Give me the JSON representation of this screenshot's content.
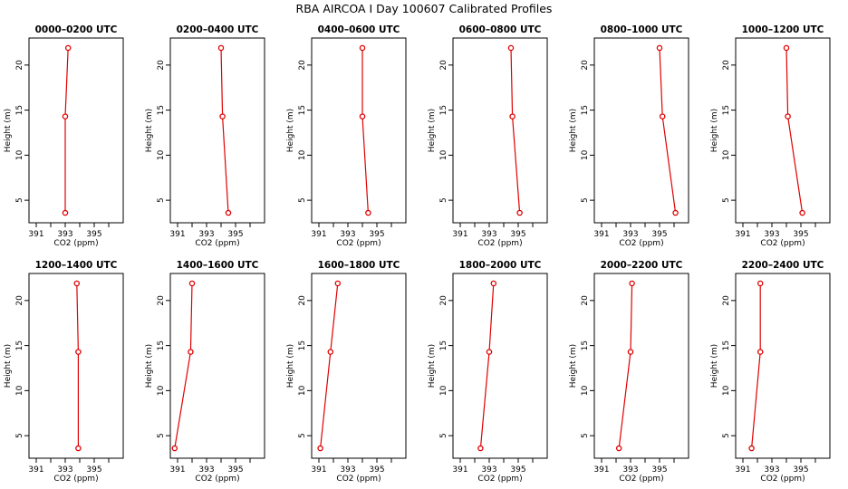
{
  "figure": {
    "title": "RBA AIRCOA I  Day 100607  Calibrated Profiles"
  },
  "chart_data": {
    "type": "line",
    "xlabel": "CO2 (ppm)",
    "ylabel": "Height (m)",
    "xlim": [
      390.5,
      397.0
    ],
    "ylim": [
      2.5,
      23.0
    ],
    "x_ticks": [
      391,
      393,
      395
    ],
    "x_minor_ticks": [
      392,
      394,
      396
    ],
    "y_ticks": [
      5,
      10,
      15,
      20
    ],
    "heights": [
      3.6,
      14.3,
      21.9
    ],
    "line_color": "#e00000",
    "marker": "open-circle",
    "panels": [
      {
        "title": "0000–0200 UTC",
        "co2": [
          393.0,
          393.0,
          393.2
        ]
      },
      {
        "title": "0200–0400 UTC",
        "co2": [
          394.5,
          394.1,
          394.0
        ]
      },
      {
        "title": "0400–0600 UTC",
        "co2": [
          394.4,
          394.0,
          394.0
        ]
      },
      {
        "title": "0600–0800 UTC",
        "co2": [
          395.1,
          394.6,
          394.5
        ]
      },
      {
        "title": "0800–1000 UTC",
        "co2": [
          396.1,
          395.2,
          395.0
        ]
      },
      {
        "title": "1000–1200 UTC",
        "co2": [
          395.1,
          394.1,
          394.0
        ]
      },
      {
        "title": "1200–1400 UTC",
        "co2": [
          393.9,
          393.9,
          393.8
        ]
      },
      {
        "title": "1400–1600 UTC",
        "co2": [
          390.8,
          391.9,
          392.0
        ]
      },
      {
        "title": "1600–1800 UTC",
        "co2": [
          391.1,
          391.8,
          392.3
        ]
      },
      {
        "title": "1800–2000 UTC",
        "co2": [
          392.4,
          393.0,
          393.3
        ]
      },
      {
        "title": "2000–2200 UTC",
        "co2": [
          392.2,
          393.0,
          393.1
        ]
      },
      {
        "title": "2200–2400 UTC",
        "co2": [
          391.6,
          392.2,
          392.2
        ]
      }
    ]
  }
}
